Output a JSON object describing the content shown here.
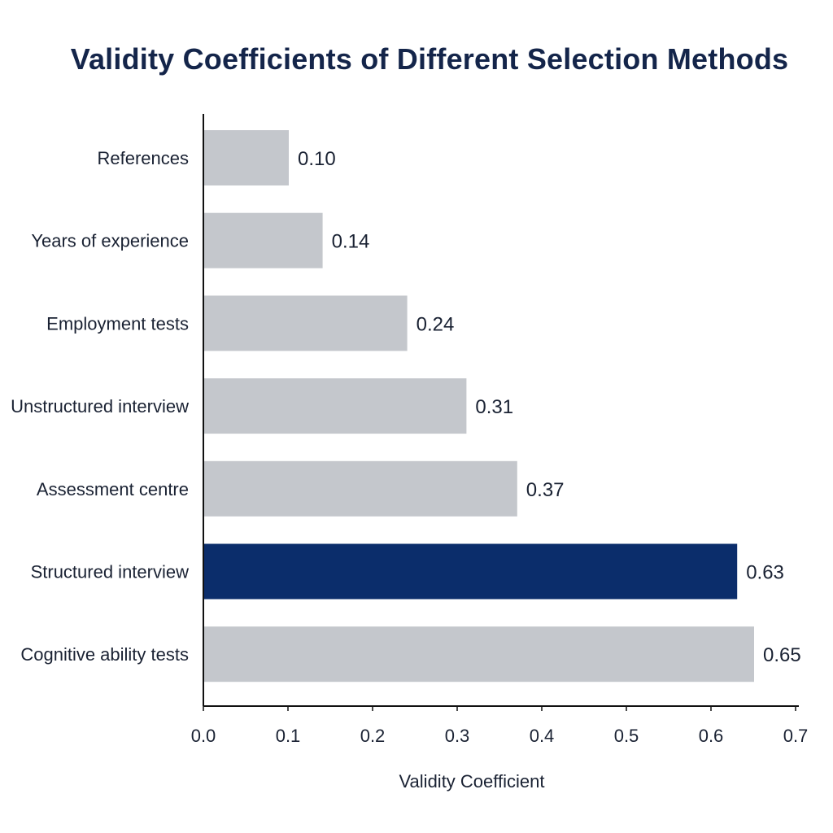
{
  "chart_data": {
    "type": "bar",
    "orientation": "horizontal",
    "title": "Validity Coefficients of Different Selection Methods",
    "xlabel": "Validity Coefficient",
    "ylabel": "",
    "categories": [
      "References",
      "Years of experience",
      "Employment tests",
      "Unstructured interview",
      "Assessment centre",
      "Structured interview",
      "Cognitive ability tests"
    ],
    "values": [
      0.1,
      0.14,
      0.24,
      0.31,
      0.37,
      0.63,
      0.65
    ],
    "value_labels": [
      "0.10",
      "0.14",
      "0.24",
      "0.31",
      "0.37",
      "0.63",
      "0.65"
    ],
    "highlight_index": 5,
    "xlim": [
      0,
      0.7
    ],
    "x_ticks": [
      "0.0",
      "0.1",
      "0.2",
      "0.3",
      "0.4",
      "0.5",
      "0.6",
      "0.7"
    ],
    "grid": false,
    "colors": {
      "bar": "#c4c7cc",
      "highlight": "#0b2d6b",
      "text": "#1a2233",
      "title": "#14254a",
      "axis": "#111111"
    }
  }
}
